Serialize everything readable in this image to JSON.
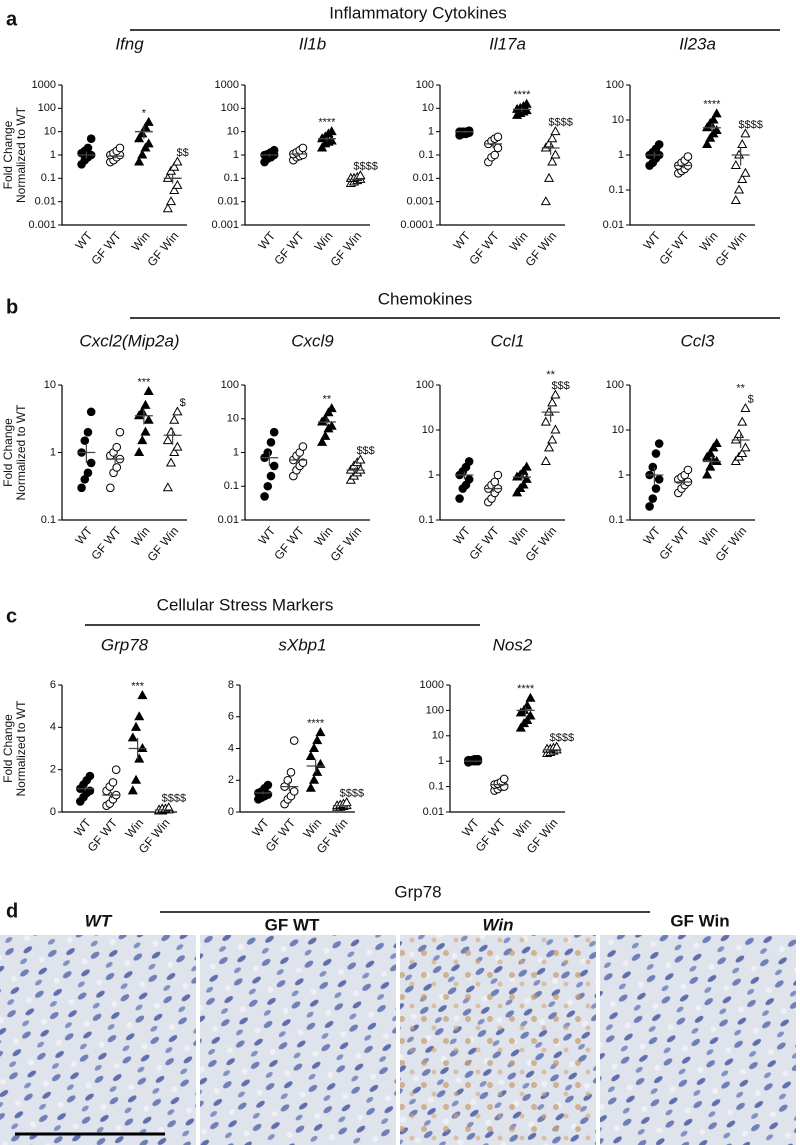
{
  "sections": [
    {
      "label": "a",
      "title": "Inflammatory Cytokines"
    },
    {
      "label": "b",
      "title": "Chemokines"
    },
    {
      "label": "c",
      "title": "Cellular Stress Markers"
    }
  ],
  "histology": {
    "label": "d",
    "title": "Grp78",
    "images": [
      "WT",
      "GF WT",
      "Win",
      "GF Win"
    ]
  },
  "chart_data": [
    {
      "type": "strip",
      "title": "Ifng",
      "ylabel": [
        "Fold Change",
        "Normalized to WT"
      ],
      "log": true,
      "ylim": [
        0.001,
        1000
      ],
      "yticks": [
        0.001,
        0.01,
        0.1,
        1,
        10,
        100,
        1000
      ],
      "categories": [
        "WT",
        "GF WT",
        "Win",
        "GF Win"
      ],
      "markers": [
        "filled-circle",
        "open-circle",
        "filled-triangle",
        "open-triangle"
      ],
      "points": [
        [
          0.4,
          0.6,
          0.8,
          1,
          1.2,
          1.5,
          2,
          5
        ],
        [
          0.5,
          0.6,
          0.8,
          1,
          1,
          1.2,
          1.5,
          2
        ],
        [
          0.5,
          1,
          2,
          3,
          5,
          8,
          15,
          25
        ],
        [
          0.005,
          0.01,
          0.03,
          0.05,
          0.1,
          0.2,
          0.3,
          0.5
        ]
      ],
      "mean": [
        1,
        0.9,
        10,
        0.1
      ],
      "error": [
        [
          0.7,
          1.4
        ],
        [
          0.7,
          1.1
        ],
        [
          5,
          18
        ],
        [
          0.06,
          0.15
        ]
      ],
      "annotations": [
        [],
        [],
        [
          "*"
        ],
        [
          "$$"
        ]
      ]
    },
    {
      "type": "strip",
      "title": "Il1b",
      "log": true,
      "ylim": [
        0.001,
        1000
      ],
      "yticks": [
        0.001,
        0.01,
        0.1,
        1,
        10,
        100,
        1000
      ],
      "categories": [
        "WT",
        "GF WT",
        "Win",
        "GF Win"
      ],
      "markers": [
        "filled-circle",
        "open-circle",
        "filled-triangle",
        "open-triangle"
      ],
      "points": [
        [
          0.5,
          0.7,
          0.8,
          1,
          1,
          1.1,
          1.3,
          1.6
        ],
        [
          0.6,
          0.8,
          0.9,
          1,
          1.1,
          1.3,
          1.6,
          2
        ],
        [
          2,
          3,
          3.5,
          4,
          5,
          6,
          8,
          10
        ],
        [
          0.06,
          0.07,
          0.08,
          0.09,
          0.1,
          0.1,
          0.11,
          0.13
        ]
      ],
      "mean": [
        1,
        1.1,
        5,
        0.09
      ],
      "error": [
        [
          0.85,
          1.15
        ],
        [
          0.9,
          1.3
        ],
        [
          4,
          6
        ],
        [
          0.08,
          0.1
        ]
      ],
      "annotations": [
        [],
        [],
        [
          "****"
        ],
        [
          "$$$$"
        ]
      ]
    },
    {
      "type": "strip",
      "title": "Il17a",
      "log": true,
      "ylim": [
        0.0001,
        100
      ],
      "yticks": [
        0.0001,
        0.001,
        0.01,
        0.1,
        1,
        10,
        100
      ],
      "categories": [
        "WT",
        "GF WT",
        "Win",
        "GF Win"
      ],
      "markers": [
        "filled-circle",
        "open-circle",
        "filled-triangle",
        "open-triangle"
      ],
      "points": [
        [
          0.7,
          0.8,
          0.8,
          0.9,
          1,
          1,
          1,
          1.1
        ],
        [
          0.05,
          0.08,
          0.1,
          0.2,
          0.3,
          0.4,
          0.5,
          0.6
        ],
        [
          5,
          6,
          7,
          8,
          9,
          10,
          12,
          15
        ],
        [
          0.001,
          0.01,
          0.05,
          0.1,
          0.2,
          0.3,
          0.5,
          1
        ]
      ],
      "mean": [
        1,
        0.3,
        9,
        0.2
      ],
      "error": [
        [
          0.9,
          1.1
        ],
        [
          0.2,
          0.4
        ],
        [
          7,
          11
        ],
        [
          0.1,
          0.35
        ]
      ],
      "annotations": [
        [],
        [],
        [
          "****"
        ],
        [
          "$$$$"
        ]
      ]
    },
    {
      "type": "strip",
      "title": "Il23a",
      "log": true,
      "ylim": [
        0.01,
        100
      ],
      "yticks": [
        0.01,
        0.1,
        1,
        10,
        100
      ],
      "categories": [
        "WT",
        "GF WT",
        "Win",
        "GF Win"
      ],
      "markers": [
        "filled-circle",
        "open-circle",
        "filled-triangle",
        "open-triangle"
      ],
      "points": [
        [
          0.5,
          0.6,
          0.8,
          1,
          1,
          1.2,
          1.5,
          2
        ],
        [
          0.3,
          0.35,
          0.4,
          0.5,
          0.5,
          0.6,
          0.7,
          0.9
        ],
        [
          2,
          3,
          4,
          5,
          6,
          8,
          10,
          15
        ],
        [
          0.05,
          0.1,
          0.2,
          0.3,
          0.5,
          1,
          2,
          4
        ]
      ],
      "mean": [
        1,
        0.5,
        6,
        1
      ],
      "error": [
        [
          0.8,
          1.25
        ],
        [
          0.42,
          0.6
        ],
        [
          4.5,
          8
        ],
        [
          0.5,
          1.6
        ]
      ],
      "annotations": [
        [],
        [],
        [
          "****"
        ],
        [
          "$$$$"
        ]
      ]
    },
    {
      "type": "strip",
      "title": "Cxcl2(Mip2a)",
      "ylabel": [
        "Fold Change",
        "Normalized to WT"
      ],
      "log": true,
      "ylim": [
        0.1,
        10
      ],
      "yticks": [
        0.1,
        1,
        10
      ],
      "categories": [
        "WT",
        "GF WT",
        "Win",
        "GF Win"
      ],
      "markers": [
        "filled-circle",
        "open-circle",
        "filled-triangle",
        "open-triangle"
      ],
      "points": [
        [
          0.3,
          0.4,
          0.5,
          0.7,
          1,
          1.5,
          2,
          4
        ],
        [
          0.3,
          0.5,
          0.6,
          0.8,
          0.9,
          1,
          1.2,
          2
        ],
        [
          1,
          1.5,
          2,
          3,
          3.5,
          4,
          5,
          8
        ],
        [
          0.3,
          0.7,
          1,
          1.2,
          1.5,
          2,
          3,
          4
        ]
      ],
      "mean": [
        1,
        0.8,
        3.5,
        1.8
      ],
      "error": [
        [
          0.7,
          1.3
        ],
        [
          0.65,
          0.95
        ],
        [
          2.6,
          4.5
        ],
        [
          1.3,
          2.3
        ]
      ],
      "annotations": [
        [],
        [],
        [
          "***"
        ],
        [
          "$"
        ]
      ]
    },
    {
      "type": "strip",
      "title": "Cxcl9",
      "log": true,
      "ylim": [
        0.01,
        100
      ],
      "yticks": [
        0.01,
        0.1,
        1,
        10,
        100
      ],
      "categories": [
        "WT",
        "GF WT",
        "Win",
        "GF Win"
      ],
      "markers": [
        "filled-circle",
        "open-circle",
        "filled-triangle",
        "open-triangle"
      ],
      "points": [
        [
          0.05,
          0.1,
          0.2,
          0.4,
          0.7,
          1,
          2,
          4
        ],
        [
          0.2,
          0.3,
          0.4,
          0.5,
          0.6,
          0.8,
          1,
          1.5
        ],
        [
          2,
          3,
          5,
          6,
          8,
          10,
          15,
          20
        ],
        [
          0.15,
          0.2,
          0.25,
          0.3,
          0.3,
          0.4,
          0.5,
          0.6
        ]
      ],
      "mean": [
        0.7,
        0.6,
        8,
        0.3
      ],
      "error": [
        [
          0.4,
          1.1
        ],
        [
          0.5,
          0.75
        ],
        [
          6,
          11
        ],
        [
          0.25,
          0.36
        ]
      ],
      "annotations": [
        [],
        [],
        [
          "**"
        ],
        [
          "$$$"
        ]
      ]
    },
    {
      "type": "strip",
      "title": "Ccl1",
      "log": true,
      "ylim": [
        0.1,
        100
      ],
      "yticks": [
        0.1,
        1,
        10,
        100
      ],
      "categories": [
        "WT",
        "GF WT",
        "Win",
        "GF Win"
      ],
      "markers": [
        "filled-circle",
        "open-circle",
        "filled-triangle",
        "open-triangle"
      ],
      "points": [
        [
          0.3,
          0.5,
          0.6,
          0.8,
          1,
          1.2,
          1.5,
          2
        ],
        [
          0.25,
          0.3,
          0.4,
          0.5,
          0.5,
          0.6,
          0.7,
          1
        ],
        [
          0.4,
          0.5,
          0.6,
          0.8,
          0.9,
          1,
          1.2,
          1.5
        ],
        [
          2,
          4,
          6,
          10,
          15,
          25,
          40,
          60
        ]
      ],
      "mean": [
        1,
        0.5,
        0.9,
        25
      ],
      "error": [
        [
          0.8,
          1.2
        ],
        [
          0.42,
          0.6
        ],
        [
          0.75,
          1.05
        ],
        [
          15,
          35
        ]
      ],
      "annotations": [
        [],
        [],
        [],
        [
          "**",
          "$$$"
        ]
      ]
    },
    {
      "type": "strip",
      "title": "Ccl3",
      "log": true,
      "ylim": [
        0.1,
        100
      ],
      "yticks": [
        0.1,
        1,
        10,
        100
      ],
      "categories": [
        "WT",
        "GF WT",
        "Win",
        "GF Win"
      ],
      "markers": [
        "filled-circle",
        "open-circle",
        "filled-triangle",
        "open-triangle"
      ],
      "points": [
        [
          0.2,
          0.3,
          0.5,
          0.8,
          1,
          1.5,
          3,
          5
        ],
        [
          0.4,
          0.5,
          0.6,
          0.7,
          0.8,
          0.9,
          1,
          1.3
        ],
        [
          1,
          1.5,
          2,
          2,
          2.5,
          3,
          4,
          5
        ],
        [
          2,
          2.5,
          3,
          4,
          6,
          8,
          15,
          30
        ]
      ],
      "mean": [
        1,
        0.7,
        2,
        6
      ],
      "error": [
        [
          0.6,
          1.5
        ],
        [
          0.6,
          0.85
        ],
        [
          1.6,
          2.6
        ],
        [
          4,
          9
        ]
      ],
      "annotations": [
        [],
        [],
        [],
        [
          "**",
          "$"
        ]
      ]
    },
    {
      "type": "strip",
      "title": "Grp78",
      "ylabel": [
        "Fold Change",
        "Normalized to WT"
      ],
      "log": false,
      "ylim": [
        0,
        6
      ],
      "yticks": [
        0,
        2,
        4,
        6
      ],
      "categories": [
        "WT",
        "GF WT",
        "Win",
        "GF Win"
      ],
      "markers": [
        "filled-circle",
        "open-circle",
        "filled-triangle",
        "open-triangle"
      ],
      "points": [
        [
          0.5,
          0.7,
          0.9,
          1,
          1.1,
          1.3,
          1.5,
          1.7
        ],
        [
          0.3,
          0.4,
          0.6,
          0.8,
          1,
          1.2,
          1.4,
          2
        ],
        [
          1,
          1.5,
          2.5,
          3,
          3.5,
          4,
          4.5,
          5.5
        ],
        [
          0.05,
          0.05,
          0.1,
          0.1,
          0.1,
          0.15,
          0.15,
          0.2
        ]
      ],
      "mean": [
        1.1,
        0.8,
        3,
        0.1
      ],
      "error": [
        [
          1,
          1.2
        ],
        [
          0.65,
          0.95
        ],
        [
          2.5,
          3.5
        ],
        [
          0.08,
          0.12
        ]
      ],
      "annotations": [
        [],
        [],
        [
          "***"
        ],
        [
          "$$$$"
        ]
      ]
    },
    {
      "type": "strip",
      "title": "sXbp1",
      "log": false,
      "ylim": [
        0,
        8
      ],
      "yticks": [
        0,
        2,
        4,
        6,
        8
      ],
      "categories": [
        "WT",
        "GF WT",
        "Win",
        "GF Win"
      ],
      "markers": [
        "filled-circle",
        "open-circle",
        "filled-triangle",
        "open-triangle"
      ],
      "points": [
        [
          0.8,
          0.9,
          1,
          1.1,
          1.2,
          1.3,
          1.5,
          1.7
        ],
        [
          0.5,
          0.8,
          1,
          1.3,
          1.6,
          2,
          2.5,
          4.5
        ],
        [
          1.5,
          2,
          2.5,
          3,
          3.5,
          4,
          4.5,
          5
        ],
        [
          0.3,
          0.3,
          0.35,
          0.4,
          0.4,
          0.45,
          0.5,
          0.6
        ]
      ],
      "mean": [
        1.2,
        1.6,
        2.9,
        0.4
      ],
      "error": [
        [
          1.1,
          1.3
        ],
        [
          1.3,
          1.9
        ],
        [
          2.5,
          3.3
        ],
        [
          0.35,
          0.45
        ]
      ],
      "annotations": [
        [],
        [],
        [
          "****"
        ],
        [
          "$$$$"
        ]
      ]
    },
    {
      "type": "strip",
      "title": "Nos2",
      "log": true,
      "ylim": [
        0.01,
        1000
      ],
      "yticks": [
        0.01,
        0.1,
        1,
        10,
        100,
        1000
      ],
      "categories": [
        "WT",
        "GF WT",
        "Win",
        "GF Win"
      ],
      "markers": [
        "filled-circle",
        "open-circle",
        "filled-triangle",
        "open-triangle"
      ],
      "points": [
        [
          0.9,
          1,
          1,
          1,
          1.1,
          1.1,
          1.2,
          1.2
        ],
        [
          0.07,
          0.08,
          0.1,
          0.1,
          0.12,
          0.13,
          0.15,
          0.2
        ],
        [
          20,
          30,
          40,
          60,
          80,
          100,
          150,
          300
        ],
        [
          2,
          2.2,
          2.5,
          2.8,
          3,
          3,
          3.3,
          3.6
        ]
      ],
      "mean": [
        1,
        0.12,
        100,
        2.8
      ],
      "error": [
        [
          0.95,
          1.05
        ],
        [
          0.1,
          0.14
        ],
        [
          60,
          140
        ],
        [
          2.6,
          3
        ]
      ],
      "annotations": [
        [],
        [],
        [
          "****"
        ],
        [
          "$$$$"
        ]
      ]
    }
  ]
}
